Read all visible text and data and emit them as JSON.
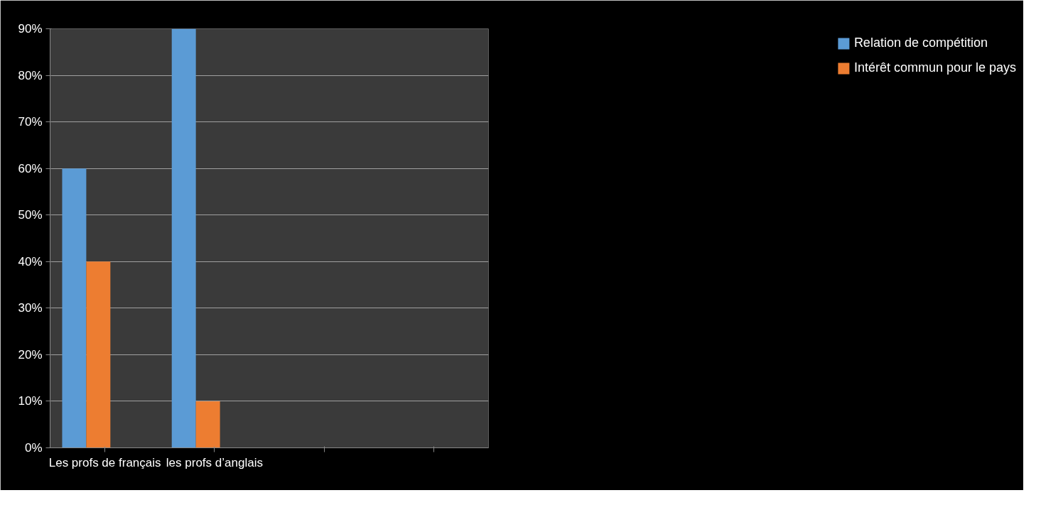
{
  "chart_data": {
    "type": "bar",
    "categories": [
      "Les profs de français",
      "les profs d’anglais",
      null,
      null
    ],
    "series": [
      {
        "name": "Relation de compétition",
        "color": "#5b9bd5",
        "values": [
          60,
          90,
          null,
          null
        ]
      },
      {
        "name": "Intérêt commun pour le pays",
        "color": "#ed7d31",
        "values": [
          40,
          10,
          null,
          null
        ]
      }
    ],
    "ylim": [
      0,
      90
    ],
    "yticks": [
      {
        "value": 0,
        "label": "0%"
      },
      {
        "value": 10,
        "label": "10%"
      },
      {
        "value": 20,
        "label": "20%"
      },
      {
        "value": 30,
        "label": "30%"
      },
      {
        "value": 40,
        "label": "40%"
      },
      {
        "value": 50,
        "label": "50%"
      },
      {
        "value": 60,
        "label": "60%"
      },
      {
        "value": 70,
        "label": "70%"
      },
      {
        "value": 80,
        "label": "80%"
      },
      {
        "value": 90,
        "label": "90%"
      }
    ],
    "grid": "y",
    "legend": "right"
  }
}
